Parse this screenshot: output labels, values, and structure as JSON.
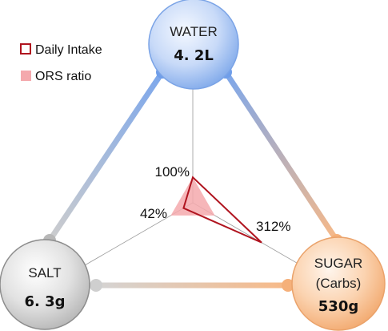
{
  "chart_data": {
    "type": "radar",
    "axes": [
      {
        "name": "WATER",
        "value_label": "4. 2L"
      },
      {
        "name": "SUGAR",
        "subname": "(Carbs)",
        "value_label": "530g"
      },
      {
        "name": "SALT",
        "value_label": "6. 3g"
      }
    ],
    "series": [
      {
        "name": "Daily Intake",
        "values": [
          100,
          312,
          42
        ],
        "labels": [
          "100%",
          "312%",
          "42%"
        ],
        "style": "outline",
        "color": "#b0141f"
      },
      {
        "name": "ORS ratio",
        "values": [
          100,
          100,
          100
        ],
        "style": "filled",
        "color": "#f4a9ad"
      }
    ],
    "rmax": 550,
    "legend": "top-left",
    "colors": {
      "water": "#7fa9ec",
      "sugar": "#f7b27b",
      "salt": "#b8b8b8",
      "intake": "#b0141f",
      "ors": "#f4a9ad"
    }
  }
}
